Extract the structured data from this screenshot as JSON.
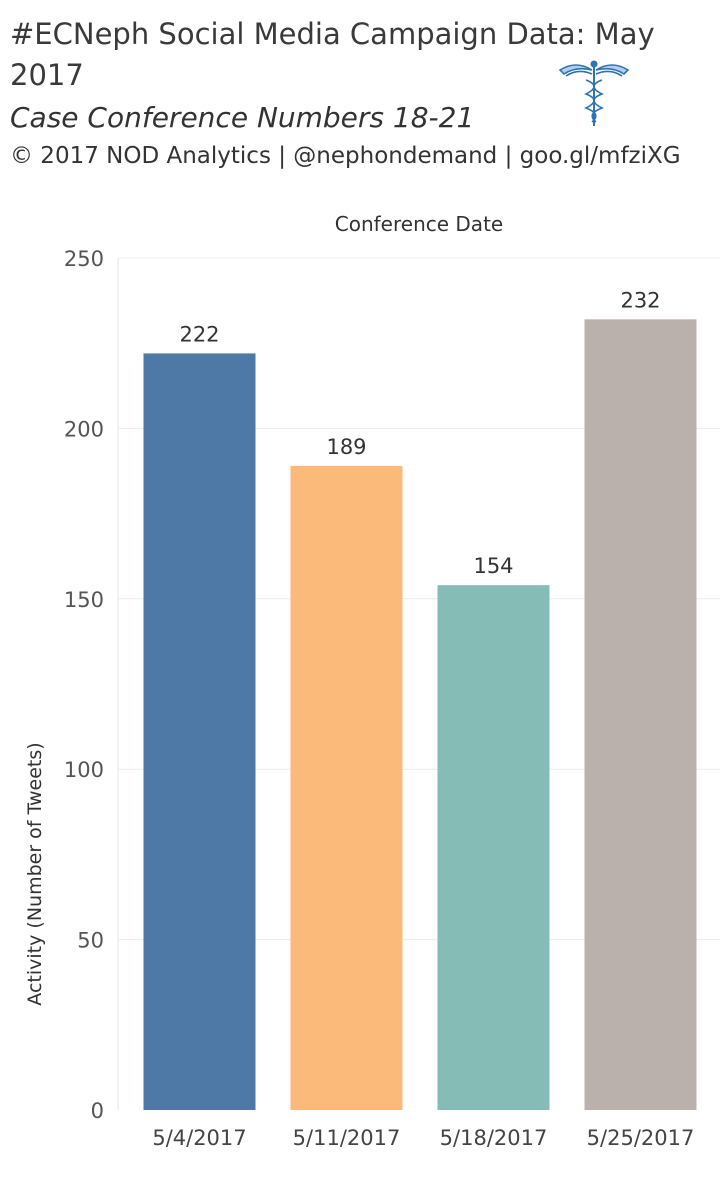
{
  "header": {
    "title": "#ECNeph Social Media Campaign Data:  May 2017",
    "subtitle": "Case Conference Numbers 18-21",
    "credit": "© 2017 NOD Analytics | @nephondemand | goo.gl/mfziXG"
  },
  "logo": {
    "icon": "caduceus-icon",
    "color": "#2e74b5"
  },
  "chart_data": {
    "type": "bar",
    "title": "Conference Date",
    "xlabel": "Conference Date",
    "ylabel": "Activity (Number of Tweets)",
    "categories": [
      "5/4/2017",
      "5/11/2017",
      "5/18/2017",
      "5/25/2017"
    ],
    "values": [
      222,
      189,
      154,
      232
    ],
    "colors": [
      "#4e79a7",
      "#fbb97a",
      "#86bcb6",
      "#bab0ac"
    ],
    "ylim": [
      0,
      250
    ],
    "yticks": [
      0,
      50,
      100,
      150,
      200,
      250
    ],
    "grid": true,
    "data_labels": true,
    "legend": "none"
  }
}
